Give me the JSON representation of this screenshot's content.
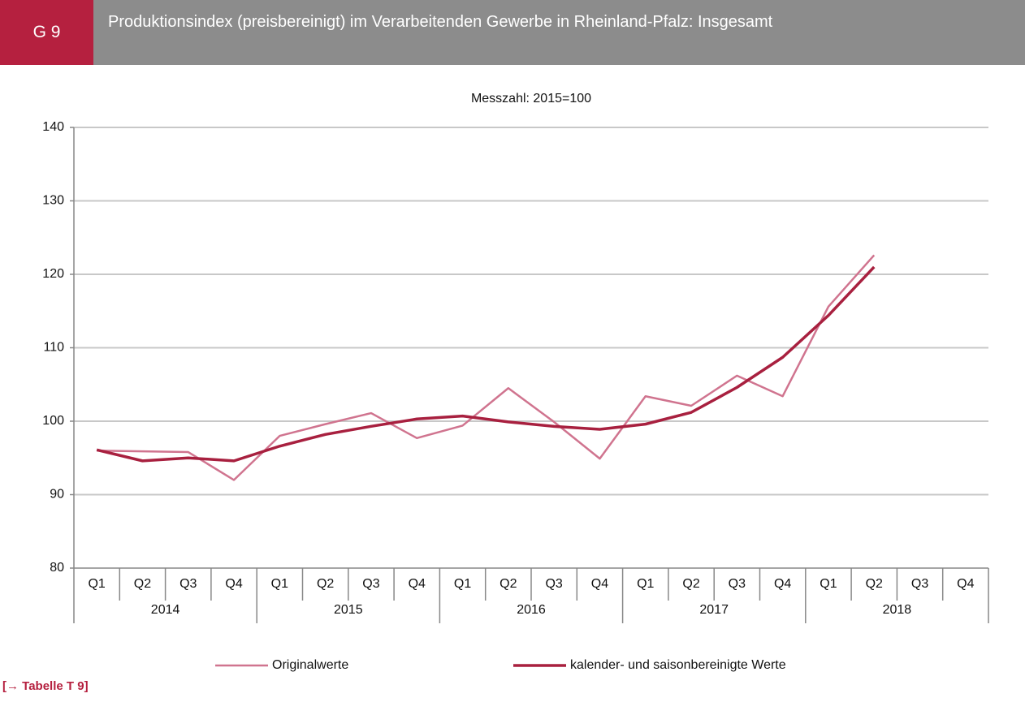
{
  "header": {
    "code": "G 9",
    "title": "Produktionsindex (preisbereinigt) im  Verarbeitenden Gewerbe  in Rheinland-Pfalz: Insgesamt"
  },
  "chart_data": {
    "type": "line",
    "subtitle": "Messzahl: 2015=100",
    "categories": [
      "Q1",
      "Q2",
      "Q3",
      "Q4",
      "Q1",
      "Q2",
      "Q3",
      "Q4",
      "Q1",
      "Q2",
      "Q3",
      "Q4",
      "Q1",
      "Q2",
      "Q3",
      "Q4",
      "Q1",
      "Q2",
      "Q3",
      "Q4"
    ],
    "years": [
      "2014",
      "2015",
      "2016",
      "2017",
      "2018"
    ],
    "series": [
      {
        "name": "Originalwerte",
        "color": "#d0748f",
        "values": [
          96.0,
          95.9,
          95.8,
          92.0,
          98.0,
          99.6,
          101.1,
          97.7,
          99.4,
          104.5,
          99.9,
          94.9,
          103.4,
          102.1,
          106.2,
          103.4,
          115.6,
          122.6,
          null,
          null
        ]
      },
      {
        "name": "kalender- und saisonbereinigte Werte",
        "color": "#a8203f",
        "values": [
          96.1,
          94.6,
          95.0,
          94.6,
          96.6,
          98.2,
          99.3,
          100.3,
          100.7,
          99.9,
          99.3,
          98.9,
          99.6,
          101.2,
          104.6,
          108.7,
          114.4,
          121.0,
          null,
          null
        ]
      }
    ],
    "ylim": [
      80,
      140
    ],
    "yticks": [
      80,
      90,
      100,
      110,
      120,
      130,
      140
    ],
    "grid": true,
    "legend": "bottom"
  },
  "link": "[→ Tabelle T 9]"
}
